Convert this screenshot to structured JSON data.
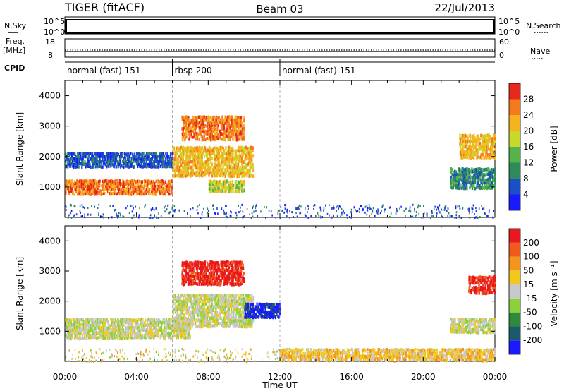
{
  "header": {
    "radar": "TIGER (fitACF)",
    "beam": "Beam 03",
    "date": "22/Jul/2013"
  },
  "side_labels": {
    "nsky": "N.Sky",
    "nsearch": "N.Search",
    "freq_line1": "Freq.",
    "freq_line2": "[MHz]",
    "nave": "Nave",
    "cpid": "CPID"
  },
  "strip_ticks": {
    "nsky_left": [
      "10^5",
      "10^0"
    ],
    "nsky_right": [
      "10^5",
      "10^0"
    ],
    "freq_left": [
      "18",
      "8"
    ],
    "nave_right": [
      "60",
      "0"
    ]
  },
  "cpid_segments": [
    {
      "label": "normal (fast) 151",
      "start_hour": 0,
      "end_hour": 6
    },
    {
      "label": "rbsp 200",
      "start_hour": 6,
      "end_hour": 12
    },
    {
      "label": "normal (fast) 151",
      "start_hour": 12,
      "end_hour": 24
    }
  ],
  "chart_data": [
    {
      "type": "heatmap",
      "panel": "power",
      "ylabel": "Slant Range [km]",
      "ylim": [
        0,
        4500
      ],
      "yticks": [
        1000,
        2000,
        3000,
        4000
      ],
      "xlim": [
        0,
        24
      ],
      "colorbar": {
        "label": "Power [dB]",
        "ticks": [
          "4",
          "8",
          "12",
          "16",
          "20",
          "24",
          "28"
        ],
        "colors": [
          "#1a1aff",
          "#1a4fc8",
          "#2d8a5a",
          "#54b34a",
          "#c9d92c",
          "#f5b41c",
          "#f57a1c",
          "#e8281c"
        ]
      },
      "echo_bands": [
        {
          "x0": 0.0,
          "x1": 6.0,
          "y0": 800,
          "y1": 1300,
          "level": 6
        },
        {
          "x0": 0.0,
          "x1": 6.0,
          "y0": 1700,
          "y1": 2200,
          "level": 1
        },
        {
          "x0": 6.0,
          "x1": 10.5,
          "y0": 1400,
          "y1": 2400,
          "level": 5
        },
        {
          "x0": 6.5,
          "x1": 10.0,
          "y0": 2600,
          "y1": 3400,
          "level": 6
        },
        {
          "x0": 8.0,
          "x1": 10.0,
          "y0": 900,
          "y1": 1300,
          "level": 4
        },
        {
          "x0": 21.5,
          "x1": 24.0,
          "y0": 1000,
          "y1": 1700,
          "level": 2
        },
        {
          "x0": 22.0,
          "x1": 24.0,
          "y0": 2000,
          "y1": 2800,
          "level": 5
        }
      ]
    },
    {
      "type": "heatmap",
      "panel": "velocity",
      "ylabel": "Slant Range [km]",
      "xlabel": "Time UT",
      "ylim": [
        0,
        4500
      ],
      "yticks": [
        1000,
        2000,
        3000,
        4000
      ],
      "xlim": [
        0,
        24
      ],
      "xticks": [
        "00:00",
        "04:00",
        "08:00",
        "12:00",
        "16:00",
        "20:00",
        "00:00"
      ],
      "colorbar": {
        "label": "Velocity [m s⁻¹]",
        "ticks": [
          "200",
          "100",
          "50",
          "15",
          "-15",
          "-50",
          "-100",
          "-200"
        ],
        "colors": [
          "#1a1aff",
          "#1a5a6a",
          "#2d8a3a",
          "#8ad23c",
          "#c8c8c8",
          "#f2c81c",
          "#f5961c",
          "#f05a1c",
          "#e8181c"
        ]
      },
      "echo_bands": [
        {
          "x0": 0.0,
          "x1": 7.0,
          "y0": 800,
          "y1": 1500,
          "level": 4
        },
        {
          "x0": 6.0,
          "x1": 10.5,
          "y0": 1200,
          "y1": 2300,
          "level": 4
        },
        {
          "x0": 6.5,
          "x1": 10.0,
          "y0": 2600,
          "y1": 3400,
          "level": 8
        },
        {
          "x0": 10.0,
          "x1": 12.0,
          "y0": 1500,
          "y1": 2000,
          "level": 0
        },
        {
          "x0": 21.5,
          "x1": 24.0,
          "y0": 1000,
          "y1": 1500,
          "level": 4
        },
        {
          "x0": 22.5,
          "x1": 24.0,
          "y0": 2300,
          "y1": 2900,
          "level": 8
        },
        {
          "x0": 12.0,
          "x1": 24.0,
          "y0": 100,
          "y1": 500,
          "level": 5
        }
      ]
    }
  ]
}
